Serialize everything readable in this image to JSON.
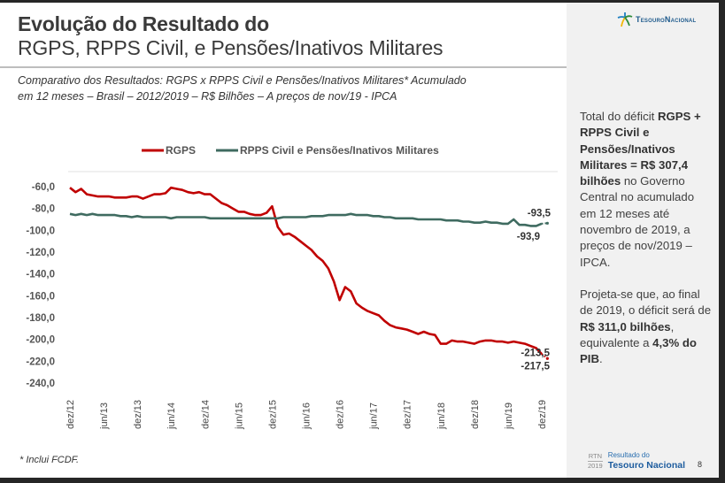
{
  "header": {
    "title_bold": "Evolução do Resultado do",
    "title_regular": "RGPS, RPPS Civil, e Pensões/Inativos Militares",
    "subtitle_line1": "Comparativo dos Resultados: RGPS x RPPS Civil e Pensões/Inativos Militares*  Acumulado",
    "subtitle_line2": "em 12 meses – Brasil – 2012/2019 – R$ Bilhões – A preços de nov/19 - IPCA"
  },
  "logo": {
    "icon": "tesouro-star-logo-icon",
    "text": "TesouroNacional"
  },
  "sidebar": {
    "p1_normal_1": "Total do déficit ",
    "p1_bold": "RGPS + RPPS Civil e Pensões/Inativos Militares = R$ 307,4 bilhões",
    "p1_normal_2": " no Governo Central no acumulado em 12 meses até novembro de 2019, a preços de nov/2019 – IPCA.",
    "p2_normal_1": "Projeta-se que, ao final de 2019, o déficit será de ",
    "p2_bold_1": "R$ 311,0 bilhões",
    "p2_normal_2": ", equivalente a ",
    "p2_bold_2": "4,3% do PIB",
    "p2_normal_3": "."
  },
  "footnote": "* Inclui FCDF.",
  "footer": {
    "rtn": "RTN",
    "year": "2019",
    "line1": "Resultado do",
    "line2": "Tesouro Nacional",
    "page": "8"
  },
  "chart_data": {
    "type": "line",
    "title": "",
    "xlabel": "",
    "ylabel": "",
    "ylim": [
      -240,
      -50
    ],
    "yticks": [
      "-60,0",
      "-80,0",
      "-100,0",
      "-120,0",
      "-140,0",
      "-160,0",
      "-180,0",
      "-200,0",
      "-220,0",
      "-240,0"
    ],
    "ytick_values": [
      -60,
      -80,
      -100,
      -120,
      -140,
      -160,
      -180,
      -200,
      -220,
      -240
    ],
    "xtick_labels": [
      "dez/12",
      "jun/13",
      "dez/13",
      "jun/14",
      "dez/14",
      "jun/15",
      "dez/15",
      "jun/16",
      "dez/16",
      "jun/17",
      "dez/17",
      "jun/18",
      "dez/18",
      "jun/19",
      "dez/19"
    ],
    "x_start": "dez/12",
    "x_end": "dez/19",
    "legend": "top",
    "grid": false,
    "series": [
      {
        "name": "RGPS",
        "color": "#c00000",
        "values": [
          -61,
          -65,
          -62,
          -67,
          -68,
          -69,
          -69,
          -69,
          -70,
          -70,
          -70,
          -69,
          -69,
          -71,
          -69,
          -67,
          -67,
          -66,
          -61,
          -62,
          -63,
          -65,
          -66,
          -65,
          -67,
          -67,
          -71,
          -75,
          -77,
          -80,
          -83,
          -83,
          -85,
          -86,
          -86,
          -84,
          -78,
          -97,
          -104,
          -103,
          -106,
          -110,
          -114,
          -118,
          -124,
          -128,
          -135,
          -147,
          -164,
          -152,
          -156,
          -167,
          -171,
          -174,
          -176,
          -178,
          -183,
          -187,
          -189,
          -190,
          -191,
          -193,
          -195,
          -193,
          -195,
          -196,
          -204,
          -204,
          -201,
          -202,
          -202,
          -203,
          -204,
          -202,
          -201,
          -201,
          -202,
          -202,
          -203,
          -202,
          -203,
          -204,
          -206,
          -208,
          -213.5
        ],
        "projection": -217.5,
        "end_labels": [
          "-213,5",
          "-217,5"
        ]
      },
      {
        "name": "RPPS Civil e Pensões/Inativos Militares",
        "color": "#3f6b60",
        "values": [
          -85,
          -86,
          -85,
          -86,
          -85,
          -86,
          -86,
          -86,
          -86,
          -87,
          -87,
          -88,
          -87,
          -88,
          -88,
          -88,
          -88,
          -88,
          -89,
          -88,
          -88,
          -88,
          -88,
          -88,
          -88,
          -89,
          -89,
          -89,
          -89,
          -89,
          -89,
          -89,
          -89,
          -89,
          -89,
          -89,
          -89,
          -89,
          -88,
          -88,
          -88,
          -88,
          -88,
          -87,
          -87,
          -87,
          -86,
          -86,
          -86,
          -86,
          -85,
          -86,
          -86,
          -86,
          -87,
          -87,
          -88,
          -88,
          -89,
          -89,
          -89,
          -89,
          -90,
          -90,
          -90,
          -90,
          -90,
          -91,
          -91,
          -91,
          -92,
          -92,
          -93,
          -93,
          -92,
          -93,
          -93,
          -94,
          -94,
          -90,
          -95,
          -95,
          -96,
          -96,
          -93.9
        ],
        "projection": -93.5,
        "end_labels": [
          "-93,5",
          "-93,9"
        ]
      }
    ]
  }
}
